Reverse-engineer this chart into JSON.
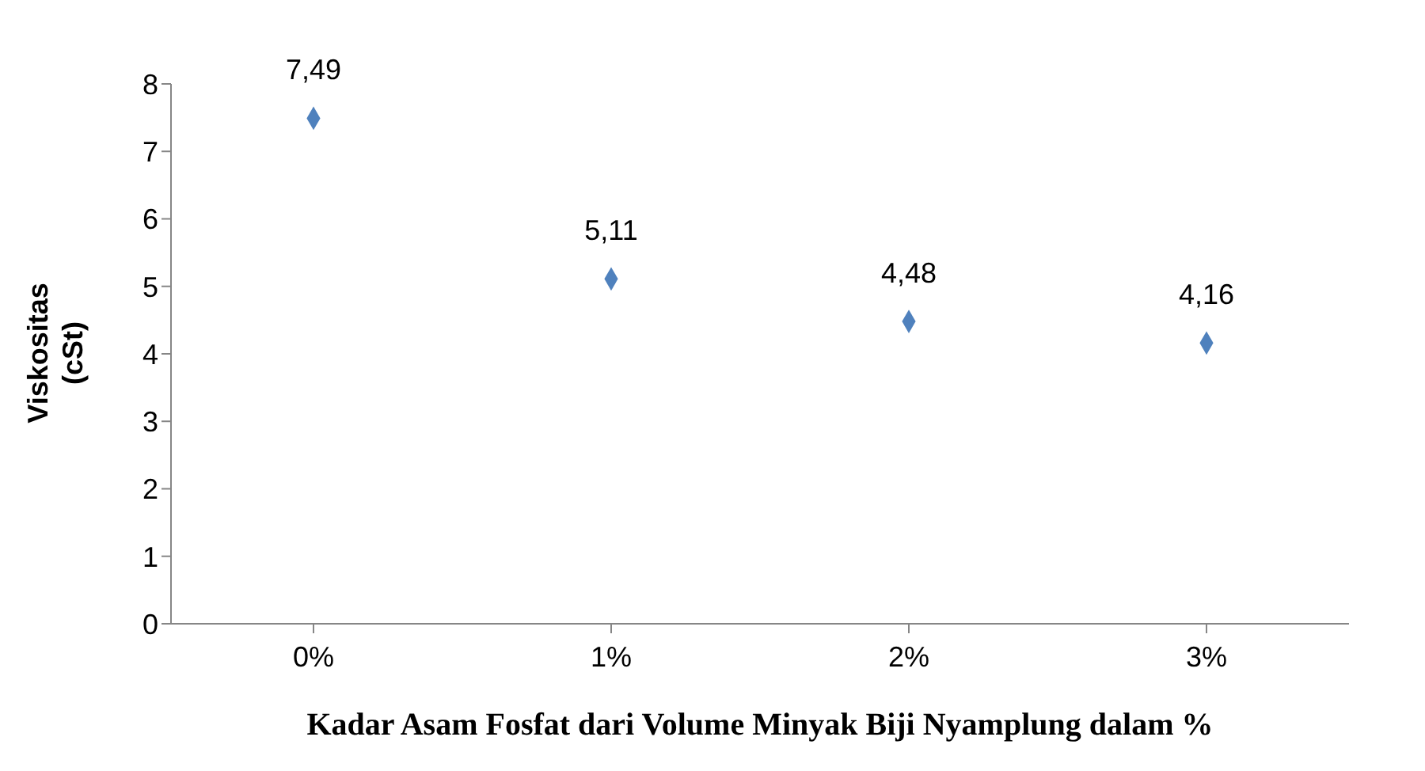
{
  "chart_data": {
    "type": "scatter",
    "xlabel": "Kadar Asam Fosfat dari Volume Minyak Biji Nyamplung dalam %",
    "ylabel": "Viskositas (cSt)",
    "categories": [
      "0%",
      "1%",
      "2%",
      "3%"
    ],
    "series": [
      {
        "color": "#4f81bd",
        "values": [
          7.49,
          5.11,
          4.48,
          4.16
        ],
        "value_labels": [
          "7,49",
          "5,11",
          "4,48",
          "4,16"
        ]
      }
    ],
    "ylim": [
      0,
      8
    ],
    "yticks": [
      0,
      1,
      2,
      3,
      4,
      5,
      6,
      7,
      8
    ],
    "marker": "diamond",
    "grid": false,
    "legend": false
  }
}
